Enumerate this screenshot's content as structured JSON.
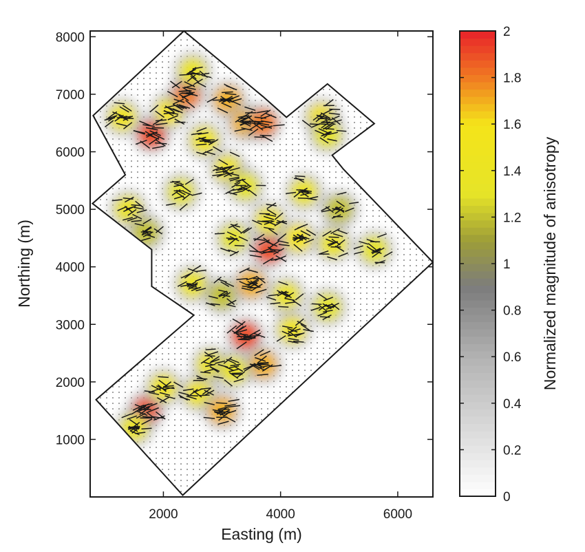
{
  "chart_data": {
    "type": "heatmap",
    "title": "",
    "xlabel": "Easting (m)",
    "ylabel": "Northing (m)",
    "xlim": [
      750,
      6600
    ],
    "ylim": [
      0,
      8100
    ],
    "x_ticks": [
      2000,
      4000,
      6000
    ],
    "y_ticks": [
      1000,
      2000,
      3000,
      4000,
      5000,
      6000,
      7000,
      8000
    ],
    "x_tick_labels": [
      "2000",
      "4000",
      "6000"
    ],
    "y_tick_labels": [
      "1000",
      "2000",
      "3000",
      "4000",
      "5000",
      "6000",
      "7000",
      "8000"
    ],
    "grid": false,
    "study_area_boundary": [
      [
        2330,
        30
      ],
      [
        6600,
        4080
      ],
      [
        5070,
        5700
      ],
      [
        4880,
        5940
      ],
      [
        5600,
        6490
      ],
      [
        4800,
        7180
      ],
      [
        4100,
        6600
      ],
      [
        3700,
        6960
      ],
      [
        2350,
        8100
      ],
      [
        800,
        6630
      ],
      [
        1350,
        5600
      ],
      [
        790,
        5100
      ],
      [
        1800,
        4300
      ],
      [
        1800,
        3660
      ],
      [
        2520,
        3160
      ],
      [
        850,
        1690
      ]
    ],
    "anisotropy_hotspots": [
      {
        "x": 1700,
        "y": 1500,
        "value": 1.9
      },
      {
        "x": 2000,
        "y": 1900,
        "value": 1.5
      },
      {
        "x": 1500,
        "y": 1200,
        "value": 1.4
      },
      {
        "x": 2600,
        "y": 1800,
        "value": 1.5
      },
      {
        "x": 3000,
        "y": 1500,
        "value": 1.7
      },
      {
        "x": 2800,
        "y": 2300,
        "value": 1.4
      },
      {
        "x": 3400,
        "y": 2800,
        "value": 1.9
      },
      {
        "x": 3700,
        "y": 2300,
        "value": 1.7
      },
      {
        "x": 4200,
        "y": 2900,
        "value": 1.5
      },
      {
        "x": 3200,
        "y": 2200,
        "value": 1.4
      },
      {
        "x": 2500,
        "y": 3700,
        "value": 1.4
      },
      {
        "x": 3000,
        "y": 3500,
        "value": 1.2
      },
      {
        "x": 3500,
        "y": 3700,
        "value": 1.7
      },
      {
        "x": 4100,
        "y": 3500,
        "value": 1.4
      },
      {
        "x": 4800,
        "y": 3300,
        "value": 1.3
      },
      {
        "x": 3800,
        "y": 4300,
        "value": 1.9
      },
      {
        "x": 4300,
        "y": 4500,
        "value": 1.6
      },
      {
        "x": 3200,
        "y": 4500,
        "value": 1.3
      },
      {
        "x": 4900,
        "y": 4400,
        "value": 1.4
      },
      {
        "x": 5600,
        "y": 4300,
        "value": 1.3
      },
      {
        "x": 3800,
        "y": 4800,
        "value": 1.5
      },
      {
        "x": 1400,
        "y": 5000,
        "value": 1.4
      },
      {
        "x": 1700,
        "y": 4600,
        "value": 1.2
      },
      {
        "x": 2300,
        "y": 5300,
        "value": 1.3
      },
      {
        "x": 3100,
        "y": 5700,
        "value": 1.5
      },
      {
        "x": 3400,
        "y": 5400,
        "value": 1.3
      },
      {
        "x": 4400,
        "y": 5300,
        "value": 1.4
      },
      {
        "x": 5000,
        "y": 5000,
        "value": 1.2
      },
      {
        "x": 1800,
        "y": 6300,
        "value": 1.9
      },
      {
        "x": 1300,
        "y": 6600,
        "value": 1.5
      },
      {
        "x": 2100,
        "y": 6700,
        "value": 1.6
      },
      {
        "x": 2400,
        "y": 7000,
        "value": 1.8
      },
      {
        "x": 2700,
        "y": 6200,
        "value": 1.5
      },
      {
        "x": 3100,
        "y": 6900,
        "value": 1.7
      },
      {
        "x": 2500,
        "y": 7400,
        "value": 1.4
      },
      {
        "x": 3400,
        "y": 6500,
        "value": 1.7
      },
      {
        "x": 3700,
        "y": 6500,
        "value": 1.8
      },
      {
        "x": 4700,
        "y": 6600,
        "value": 1.6
      },
      {
        "x": 4800,
        "y": 6300,
        "value": 1.3
      }
    ],
    "colorbar": {
      "label": "Normalized magnitude of anisotropy",
      "range": [
        0,
        2
      ],
      "ticks": [
        0,
        0.2,
        0.4,
        0.6,
        0.8,
        1,
        1.2,
        1.4,
        1.6,
        1.8,
        2
      ],
      "tick_labels": [
        "0",
        "0.2",
        "0.4",
        "0.6",
        "0.8",
        "1",
        "1.2",
        "1.4",
        "1.6",
        "1.8",
        "2"
      ],
      "colormap_stops": [
        {
          "value": 0,
          "color": "#ffffff"
        },
        {
          "value": 0.6,
          "color": "#b2b2b2"
        },
        {
          "value": 0.9,
          "color": "#7c7c7c"
        },
        {
          "value": 1.1,
          "color": "#9e9e38"
        },
        {
          "value": 1.3,
          "color": "#e6e428"
        },
        {
          "value": 1.6,
          "color": "#f4e41a"
        },
        {
          "value": 1.8,
          "color": "#f07a22"
        },
        {
          "value": 2,
          "color": "#e8222a"
        }
      ]
    }
  }
}
